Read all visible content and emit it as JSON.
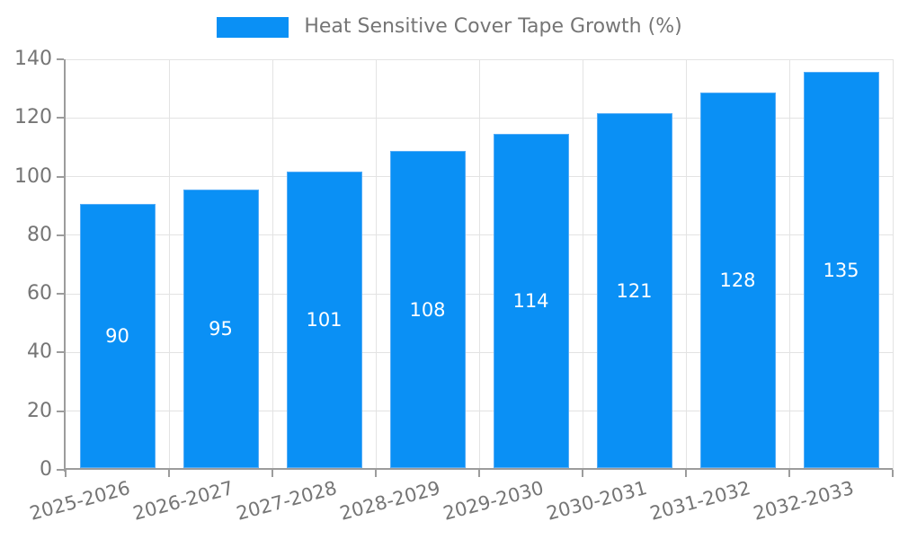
{
  "legend": {
    "label": "Heat Sensitive Cover Tape Growth (%)"
  },
  "colors": {
    "bar_fill": "#0a90f5",
    "bar_border": "#54acf7",
    "axis_line": "#9c9c9c",
    "gridline": "#e3e3e3",
    "axis_text": "#757575",
    "value_text": "#ffffff",
    "background": "#ffffff"
  },
  "chart_data": {
    "type": "bar",
    "title": "Heat Sensitive Cover Tape Growth (%)",
    "categories": [
      "2025-2026",
      "2026-2027",
      "2027-2028",
      "2028-2029",
      "2029-2030",
      "2030-2031",
      "2031-2032",
      "2032-2033"
    ],
    "values": [
      90,
      95,
      101,
      108,
      114,
      121,
      128,
      135
    ],
    "series": [
      {
        "name": "Heat Sensitive Cover Tape Growth (%)",
        "values": [
          90,
          95,
          101,
          108,
          114,
          121,
          128,
          135
        ]
      }
    ],
    "xlabel": "",
    "ylabel": "",
    "ylim": [
      0,
      140
    ],
    "yticks": [
      0,
      20,
      40,
      60,
      80,
      100,
      120,
      140
    ],
    "grid": "both",
    "legend_position": "top-center",
    "value_label_position": "inside-middle",
    "x_tick_rotation_deg": -15
  }
}
